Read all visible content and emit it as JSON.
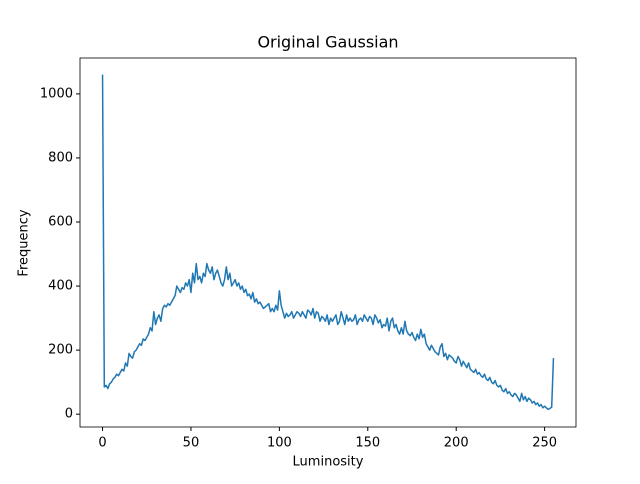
{
  "chart_data": {
    "type": "line",
    "title": "Original Gaussian",
    "x_label": "Luminosity",
    "y_label": "Frequency",
    "x": [
      0,
      1,
      2,
      3,
      4,
      5,
      6,
      7,
      8,
      9,
      10,
      11,
      12,
      13,
      14,
      15,
      16,
      17,
      18,
      19,
      20,
      21,
      22,
      23,
      24,
      25,
      26,
      27,
      28,
      29,
      30,
      31,
      32,
      33,
      34,
      35,
      36,
      37,
      38,
      39,
      40,
      41,
      42,
      43,
      44,
      45,
      46,
      47,
      48,
      49,
      50,
      51,
      52,
      53,
      54,
      55,
      56,
      57,
      58,
      59,
      60,
      61,
      62,
      63,
      64,
      65,
      66,
      67,
      68,
      69,
      70,
      71,
      72,
      73,
      74,
      75,
      76,
      77,
      78,
      79,
      80,
      81,
      82,
      83,
      84,
      85,
      86,
      87,
      88,
      89,
      90,
      91,
      92,
      93,
      94,
      95,
      96,
      97,
      98,
      99,
      100,
      101,
      102,
      103,
      104,
      105,
      106,
      107,
      108,
      109,
      110,
      111,
      112,
      113,
      114,
      115,
      116,
      117,
      118,
      119,
      120,
      121,
      122,
      123,
      124,
      125,
      126,
      127,
      128,
      129,
      130,
      131,
      132,
      133,
      134,
      135,
      136,
      137,
      138,
      139,
      140,
      141,
      142,
      143,
      144,
      145,
      146,
      147,
      148,
      149,
      150,
      151,
      152,
      153,
      154,
      155,
      156,
      157,
      158,
      159,
      160,
      161,
      162,
      163,
      164,
      165,
      166,
      167,
      168,
      169,
      170,
      171,
      172,
      173,
      174,
      175,
      176,
      177,
      178,
      179,
      180,
      181,
      182,
      183,
      184,
      185,
      186,
      187,
      188,
      189,
      190,
      191,
      192,
      193,
      194,
      195,
      196,
      197,
      198,
      199,
      200,
      201,
      202,
      203,
      204,
      205,
      206,
      207,
      208,
      209,
      210,
      211,
      212,
      213,
      214,
      215,
      216,
      217,
      218,
      219,
      220,
      221,
      222,
      223,
      224,
      225,
      226,
      227,
      228,
      229,
      230,
      231,
      232,
      233,
      234,
      235,
      236,
      237,
      238,
      239,
      240,
      241,
      242,
      243,
      244,
      245,
      246,
      247,
      248,
      249,
      250,
      251,
      252,
      253,
      254,
      255
    ],
    "series": [
      {
        "color": "#1f77b4",
        "values": [
          1060,
          85,
          90,
          80,
          95,
          100,
          110,
          115,
          125,
          120,
          130,
          140,
          135,
          160,
          150,
          190,
          180,
          175,
          195,
          200,
          210,
          220,
          215,
          235,
          230,
          240,
          250,
          270,
          260,
          320,
          280,
          300,
          310,
          290,
          330,
          340,
          335,
          345,
          340,
          350,
          360,
          370,
          400,
          390,
          380,
          395,
          390,
          410,
          400,
          420,
          380,
          440,
          410,
          470,
          420,
          430,
          410,
          440,
          430,
          470,
          450,
          440,
          460,
          420,
          440,
          450,
          430,
          410,
          400,
          420,
          460,
          420,
          440,
          400,
          410,
          420,
          400,
          410,
          390,
          400,
          380,
          390,
          370,
          375,
          360,
          380,
          350,
          360,
          345,
          350,
          340,
          330,
          335,
          340,
          345,
          320,
          330,
          320,
          340,
          325,
          385,
          340,
          320,
          300,
          315,
          305,
          310,
          320,
          300,
          310,
          320,
          315,
          305,
          320,
          310,
          300,
          325,
          320,
          310,
          330,
          300,
          320,
          315,
          290,
          305,
          300,
          290,
          310,
          280,
          300,
          290,
          300,
          310,
          280,
          290,
          320,
          300,
          280,
          310,
          290,
          300,
          290,
          295,
          310,
          280,
          295,
          300,
          290,
          310,
          300,
          290,
          305,
          300,
          280,
          310,
          300,
          285,
          295,
          270,
          280,
          275,
          300,
          260,
          290,
          300,
          270,
          280,
          260,
          250,
          270,
          250,
          290,
          260,
          250,
          245,
          255,
          240,
          230,
          250,
          235,
          265,
          240,
          250,
          220,
          210,
          200,
          215,
          205,
          195,
          190,
          185,
          210,
          220,
          180,
          190,
          170,
          185,
          180,
          175,
          165,
          160,
          180,
          170,
          150,
          165,
          155,
          145,
          160,
          140,
          135,
          130,
          140,
          125,
          130,
          120,
          115,
          125,
          110,
          105,
          115,
          100,
          95,
          105,
          90,
          85,
          90,
          75,
          70,
          80,
          65,
          70,
          60,
          55,
          65,
          60,
          50,
          40,
          65,
          45,
          55,
          40,
          50,
          45,
          35,
          40,
          30,
          35,
          25,
          30,
          20,
          25,
          20,
          15,
          18,
          22,
          175
        ]
      }
    ],
    "xlim": [
      -12.75,
      267.75
    ],
    "ylim": [
      -40,
      1112
    ],
    "xticks": [
      0,
      50,
      100,
      150,
      200,
      250
    ],
    "yticks": [
      0,
      200,
      400,
      600,
      800,
      1000
    ]
  }
}
